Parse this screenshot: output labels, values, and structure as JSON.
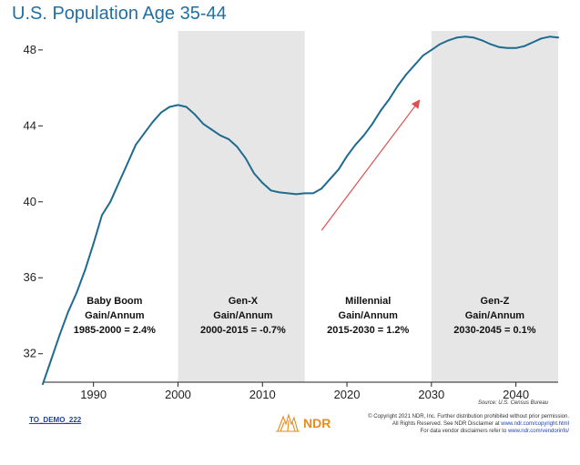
{
  "chart_data": {
    "type": "line",
    "title": "U.S. Population Age 35-44",
    "xlabel": "",
    "ylabel": "",
    "xlim": [
      1984,
      2045
    ],
    "ylim": [
      30.5,
      49
    ],
    "x_ticks": [
      1990,
      2000,
      2010,
      2020,
      2030,
      2040
    ],
    "y_ticks": [
      32,
      36,
      40,
      44,
      48
    ],
    "grid": false,
    "line_color": "#1f6b8f",
    "shade_color": "#e6e6e6",
    "series": [
      {
        "x": [
          1984,
          1985,
          1986,
          1987,
          1988,
          1989,
          1990,
          1991,
          1992,
          1993,
          1994,
          1995,
          1996,
          1997,
          1998,
          1999,
          2000,
          2001,
          2002,
          2003,
          2004,
          2005,
          2006,
          2007,
          2008,
          2009,
          2010,
          2011,
          2012,
          2013,
          2014,
          2015,
          2016,
          2017,
          2018,
          2019,
          2020,
          2021,
          2022,
          2023,
          2024,
          2025,
          2026,
          2027,
          2028,
          2029,
          2030,
          2031,
          2032,
          2033,
          2034,
          2035,
          2036,
          2037,
          2038,
          2039,
          2040,
          2041,
          2042,
          2043,
          2044,
          2045
        ],
        "values": [
          30.4,
          31.7,
          33.0,
          34.2,
          35.2,
          36.4,
          37.8,
          39.3,
          40.0,
          41.0,
          42.0,
          43.0,
          43.6,
          44.2,
          44.7,
          45.0,
          45.1,
          45.0,
          44.6,
          44.1,
          43.8,
          43.5,
          43.3,
          42.9,
          42.3,
          41.5,
          41.0,
          40.6,
          40.5,
          40.45,
          40.4,
          40.45,
          40.45,
          40.7,
          41.2,
          41.7,
          42.4,
          43.0,
          43.5,
          44.1,
          44.8,
          45.4,
          46.1,
          46.7,
          47.2,
          47.7,
          48.0,
          48.3,
          48.5,
          48.65,
          48.7,
          48.65,
          48.5,
          48.3,
          48.15,
          48.1,
          48.1,
          48.2,
          48.4,
          48.6,
          48.7,
          48.65
        ]
      }
    ],
    "shaded_periods": [
      {
        "x_start": 2000,
        "x_end": 2015
      },
      {
        "x_start": 2030,
        "x_end": 2045
      }
    ],
    "arrow": {
      "x_start": 2017,
      "y_start": 38.5,
      "x_end": 2028.5,
      "y_end": 45.3,
      "color": "#e05050"
    },
    "annotations": [
      {
        "line1": "Baby Boom",
        "line2": "Gain/Annum",
        "line3": "1985-2000 = 2.4%",
        "x": 1992.5
      },
      {
        "line1": "Gen-X",
        "line2": "Gain/Annum",
        "line3": "2000-2015 = -0.7%",
        "x": 2007.7
      },
      {
        "line1": "Millennial",
        "line2": "Gain/Annum",
        "line3": "2015-2030 = 1.2%",
        "x": 2022.5
      },
      {
        "line1": "Gen-Z",
        "line2": "Gain/Annum",
        "line3": "2030-2045 = 0.1%",
        "x": 2037.5
      }
    ],
    "source": "Source: U.S. Census Bureau"
  },
  "footer": {
    "demo_code": "TO_DEMO_222",
    "brand": "NDR",
    "copyright_line1": "© Copyright 2021 NDR, Inc. Further distribution prohibited without prior permission.",
    "copyright_line2_prefix": "All Rights Reserved. See NDR Disclaimer at ",
    "copyright_line2_link": "www.ndr.com/copyright.html",
    "copyright_line3_prefix": "For data vendor disclaimers refer to ",
    "copyright_line3_link": "www.ndr.com/vendorinfo/"
  }
}
